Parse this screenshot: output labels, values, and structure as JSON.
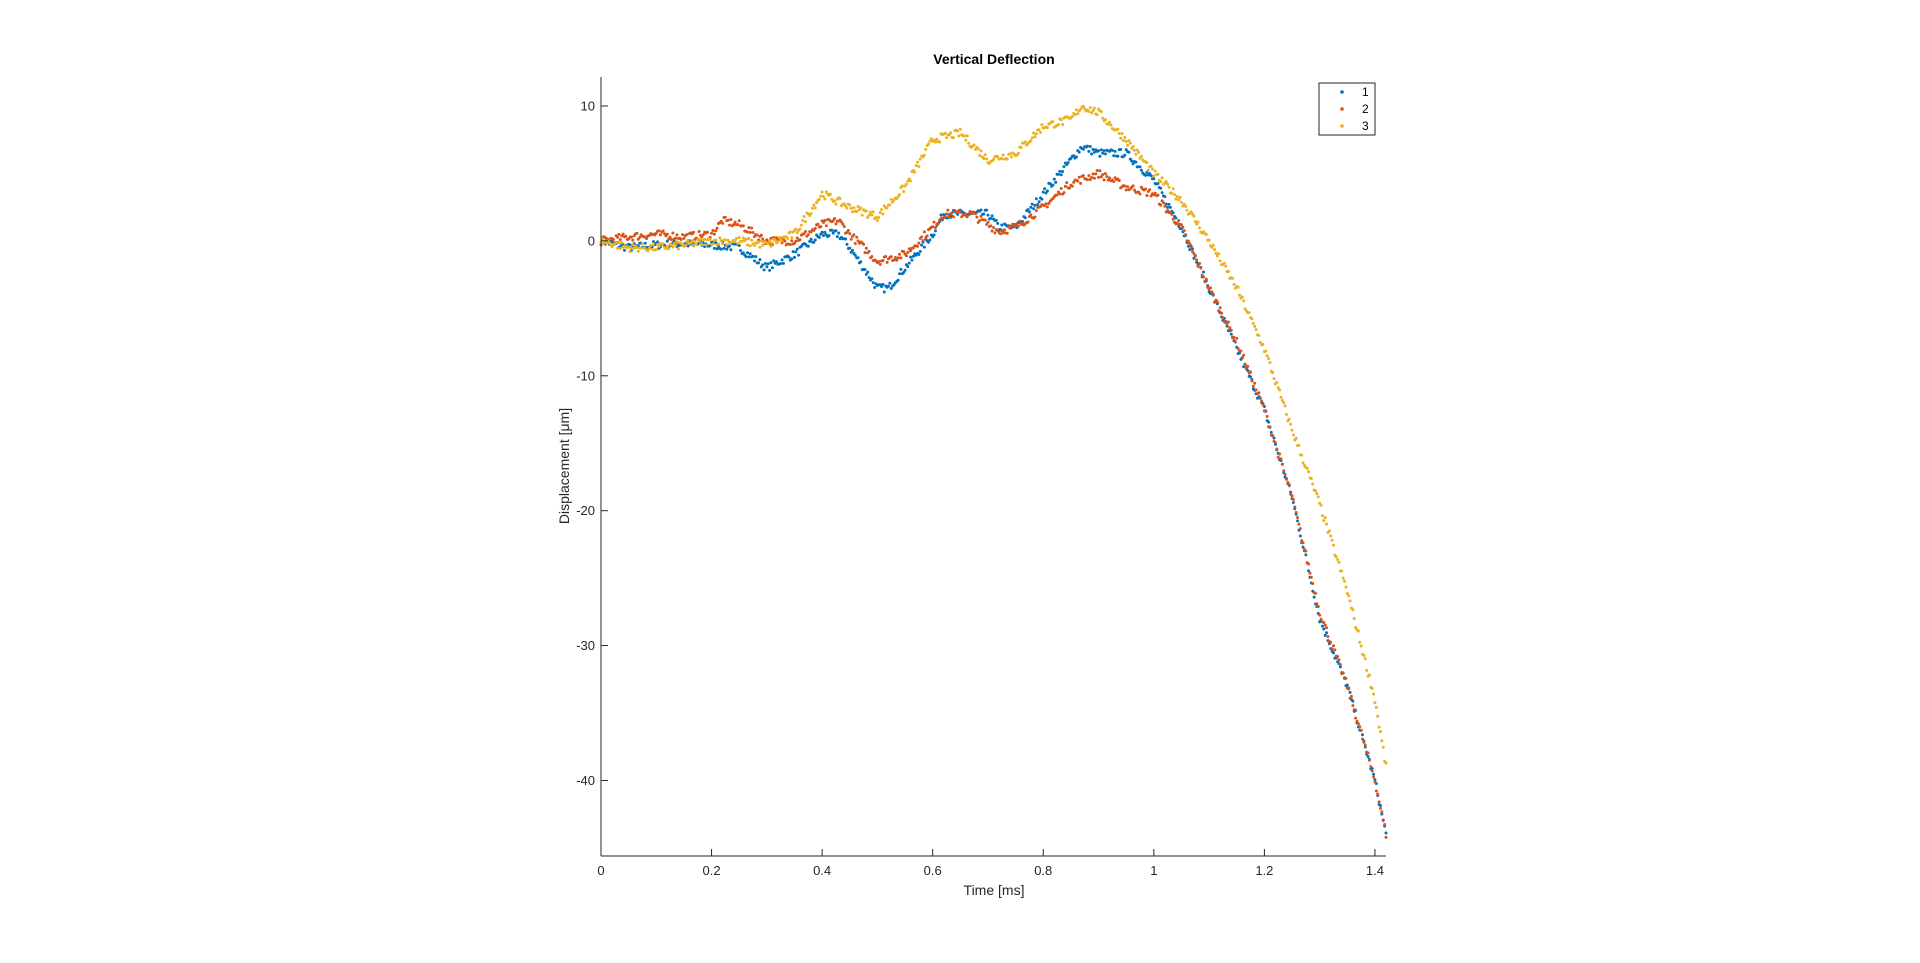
{
  "chart_data": {
    "type": "scatter",
    "title": "Vertical Deflection",
    "xlabel": "Time [ms]",
    "ylabel": "Displacement [μm]",
    "xlim": [
      0,
      1.42
    ],
    "ylim": [
      -45.6,
      10
    ],
    "xticks": [
      0,
      0.2,
      0.4,
      0.6,
      0.8,
      1,
      1.2,
      1.4
    ],
    "xtick_labels": [
      "0",
      "0.2",
      "0.4",
      "0.6",
      "0.8",
      "1",
      "1.2",
      "1.4"
    ],
    "yticks": [
      10,
      0,
      -10,
      -20,
      -30,
      -40
    ],
    "ytick_labels": [
      "10",
      "0",
      "-10",
      "-20",
      "-30",
      "-40"
    ],
    "grid": false,
    "legend_position": "top-right",
    "series": [
      {
        "name": "1",
        "color": "#0072BD",
        "x": [
          0,
          0.05,
          0.1,
          0.15,
          0.2,
          0.25,
          0.3,
          0.35,
          0.4,
          0.43,
          0.45,
          0.5,
          0.52,
          0.55,
          0.6,
          0.62,
          0.65,
          0.7,
          0.72,
          0.75,
          0.8,
          0.85,
          0.87,
          0.9,
          0.95,
          1.0,
          1.05,
          1.1,
          1.15,
          1.2,
          1.25,
          1.3,
          1.35,
          1.4,
          1.42
        ],
        "y": [
          0,
          -0.5,
          -0.3,
          -0.2,
          -0.3,
          -0.5,
          -2,
          -1,
          0.5,
          0.5,
          -0.5,
          -3.5,
          -3.5,
          -2,
          0.5,
          2,
          2,
          2,
          1,
          1,
          3.5,
          6,
          7,
          6.5,
          6.5,
          4.5,
          1,
          -3.5,
          -8,
          -12.5,
          -19,
          -28,
          -33,
          -40,
          -44
        ]
      },
      {
        "name": "2",
        "color": "#D95319",
        "x": [
          0,
          0.05,
          0.1,
          0.15,
          0.2,
          0.22,
          0.25,
          0.3,
          0.35,
          0.4,
          0.43,
          0.45,
          0.5,
          0.55,
          0.6,
          0.62,
          0.67,
          0.72,
          0.75,
          0.8,
          0.85,
          0.9,
          0.95,
          1.0,
          1.05,
          1.1,
          1.15,
          1.2,
          1.25,
          1.3,
          1.35,
          1.4,
          1.42
        ],
        "y": [
          0,
          0.3,
          0.5,
          0.3,
          0.5,
          1.5,
          1.2,
          0,
          0,
          1.2,
          1.5,
          0.5,
          -1.5,
          -1,
          1,
          2,
          2,
          0.7,
          1,
          2.5,
          4.3,
          5,
          4,
          3.5,
          1,
          -3.5,
          -7.5,
          -12.5,
          -19,
          -27.5,
          -33,
          -40,
          -44
        ]
      },
      {
        "name": "3",
        "color": "#EDB120",
        "x": [
          0,
          0.05,
          0.1,
          0.15,
          0.2,
          0.25,
          0.3,
          0.35,
          0.4,
          0.45,
          0.5,
          0.55,
          0.6,
          0.65,
          0.7,
          0.75,
          0.8,
          0.85,
          0.87,
          0.9,
          0.95,
          1.0,
          1.05,
          1.1,
          1.15,
          1.2,
          1.25,
          1.3,
          1.35,
          1.4,
          1.42
        ],
        "y": [
          0,
          -0.5,
          -0.5,
          -0.3,
          0,
          0,
          -0.3,
          0.5,
          3.5,
          2.5,
          1.8,
          4,
          7.5,
          8,
          6,
          6.5,
          8.5,
          9,
          10,
          9.5,
          7.5,
          5,
          3,
          0,
          -3.5,
          -8,
          -14,
          -19.5,
          -26,
          -34,
          -39
        ]
      }
    ]
  }
}
